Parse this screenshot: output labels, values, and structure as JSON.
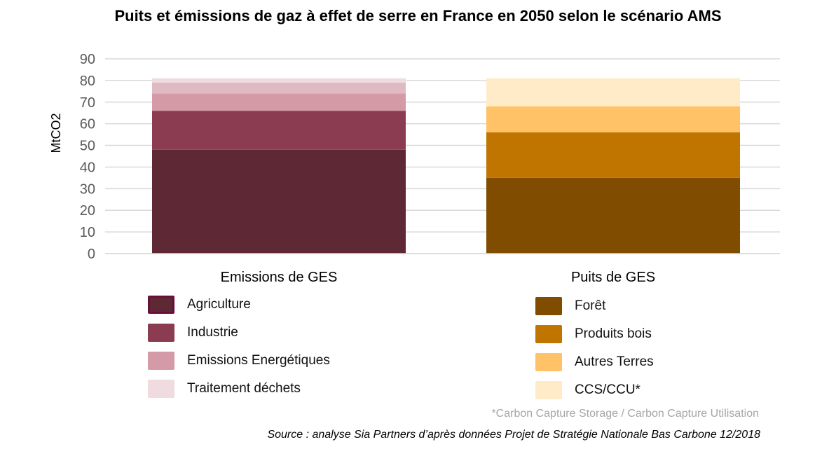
{
  "chart_data": {
    "type": "bar",
    "stacked": true,
    "title": "Puits et émissions de gaz à effet de serre en France en 2050 selon le scénario AMS",
    "ylabel": "MtCO2",
    "xlabel": "",
    "ylim": [
      0,
      90
    ],
    "yticks": [
      0,
      10,
      20,
      30,
      40,
      50,
      60,
      70,
      80,
      90
    ],
    "grid": true,
    "legend_placement": "bottom",
    "categories": [
      "Emissions de GES",
      "Puits de GES"
    ],
    "groups": [
      {
        "category": "Emissions de GES",
        "series": [
          {
            "name": "Agriculture",
            "value": 48,
            "color": "#5e2835",
            "border": "#6b0f3a"
          },
          {
            "name": "Industrie",
            "value": 18,
            "color": "#8b3c50"
          },
          {
            "name": "Emissions Energétiques",
            "value": 8,
            "color": "#d49aa6"
          },
          {
            "value": 5,
            "color": "#e0bac2"
          },
          {
            "name": "Traitement déchets",
            "value": 2,
            "color": "#f0dce0"
          }
        ]
      },
      {
        "category": "Puits de GES",
        "series": [
          {
            "name": "Forêt",
            "value": 35,
            "color": "#7f4c00"
          },
          {
            "name": "Produits bois",
            "value": 21,
            "color": "#c07500"
          },
          {
            "name": "Autres Terres",
            "value": 12,
            "color": "#ffc266"
          },
          {
            "name": "CCS/CCU*",
            "value": 13,
            "color": "#ffebc8"
          }
        ]
      }
    ],
    "footnote": "*Carbon Capture Storage / Carbon Capture Utilisation",
    "source": "Source : analyse Sia Partners d’après données Projet de Stratégie Nationale Bas Carbone 12/2018"
  }
}
